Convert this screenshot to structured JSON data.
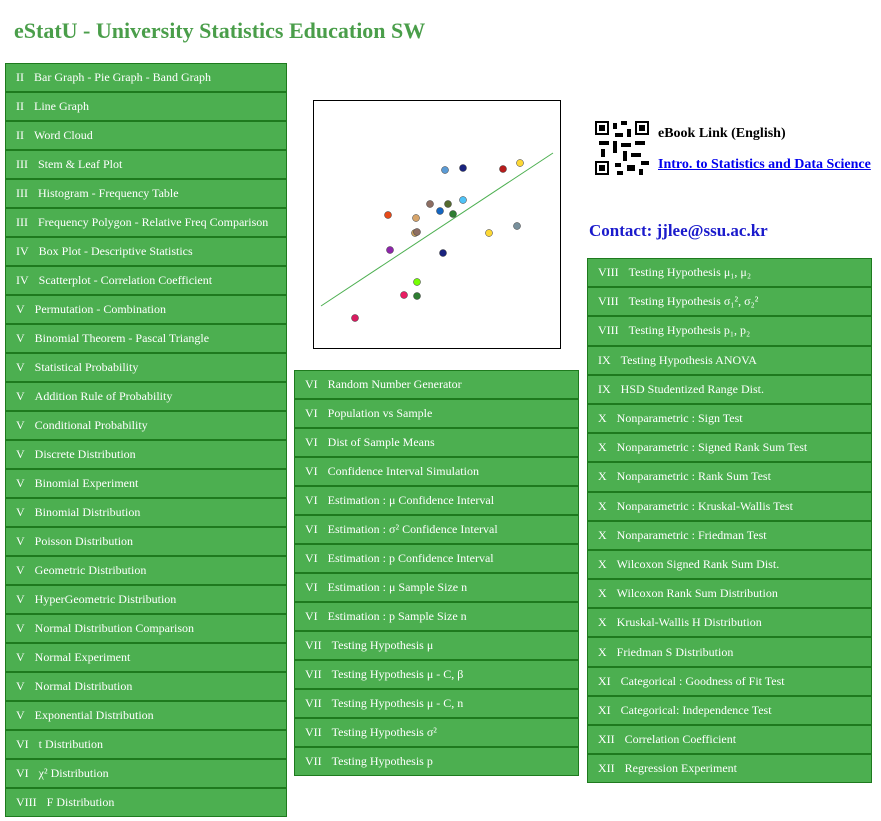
{
  "header": {
    "title": "eStatU - University Statistics Education SW"
  },
  "ebook": {
    "label": "eBook Link (English)",
    "link": "Intro. to Statistics and Data Science"
  },
  "contact": "Contact: jjlee@ssu.ac.kr",
  "left": {
    "items": [
      {
        "chapter": "II",
        "label": "Bar Graph - Pie Graph - Band Graph"
      },
      {
        "chapter": "II",
        "label": "Line Graph"
      },
      {
        "chapter": "II",
        "label": "Word Cloud"
      },
      {
        "chapter": "III",
        "label": "Stem & Leaf Plot"
      },
      {
        "chapter": "III",
        "label": "Histogram - Frequency Table"
      },
      {
        "chapter": "III",
        "label": "Frequency Polygon - Relative Freq Comparison"
      },
      {
        "chapter": "IV",
        "label": "Box Plot - Descriptive Statistics"
      },
      {
        "chapter": "IV",
        "label": "Scatterplot - Correlation Coefficient"
      },
      {
        "chapter": "V",
        "label": "Permutation - Combination"
      },
      {
        "chapter": "V",
        "label": "Binomial Theorem - Pascal Triangle"
      },
      {
        "chapter": "V",
        "label": "Statistical Probability"
      },
      {
        "chapter": "V",
        "label": "Addition Rule of Probability"
      },
      {
        "chapter": "V",
        "label": "Conditional Probability"
      },
      {
        "chapter": "V",
        "label": "Discrete Distribution"
      },
      {
        "chapter": "V",
        "label": "Binomial Experiment"
      },
      {
        "chapter": "V",
        "label": "Binomial Distribution"
      },
      {
        "chapter": "V",
        "label": "Poisson Distribution"
      },
      {
        "chapter": "V",
        "label": "Geometric Distribution"
      },
      {
        "chapter": "V",
        "label": "HyperGeometric Distribution"
      },
      {
        "chapter": "V",
        "label": "Normal Distribution Comparison"
      },
      {
        "chapter": "V",
        "label": "Normal Experiment"
      },
      {
        "chapter": "V",
        "label": "Normal Distribution"
      },
      {
        "chapter": "V",
        "label": "Exponential Distribution"
      },
      {
        "chapter": "VI",
        "label": "t Distribution"
      },
      {
        "chapter": "VI",
        "label": "χ² Distribution"
      },
      {
        "chapter": "VIII",
        "label": "F Distribution"
      }
    ]
  },
  "middle": {
    "items": [
      {
        "chapter": "VI",
        "label": "Random Number Generator"
      },
      {
        "chapter": "VI",
        "label": "Population vs Sample"
      },
      {
        "chapter": "VI",
        "label": "Dist of Sample Means"
      },
      {
        "chapter": "VI",
        "label": "Confidence Interval Simulation"
      },
      {
        "chapter": "VI",
        "label": "Estimation : μ Confidence Interval"
      },
      {
        "chapter": "VI",
        "label": "Estimation : σ² Confidence Interval"
      },
      {
        "chapter": "VI",
        "label": "Estimation : p Confidence Interval"
      },
      {
        "chapter": "VI",
        "label": "Estimation : μ Sample Size n"
      },
      {
        "chapter": "VI",
        "label": "Estimation : p Sample Size n"
      },
      {
        "chapter": "VII",
        "label": "Testing Hypothesis μ"
      },
      {
        "chapter": "VII",
        "label": "Testing Hypothesis μ - C, β"
      },
      {
        "chapter": "VII",
        "label": "Testing Hypothesis μ - C, n"
      },
      {
        "chapter": "VII",
        "label": "Testing Hypothesis σ²"
      },
      {
        "chapter": "VII",
        "label": "Testing Hypothesis p"
      }
    ]
  },
  "right": {
    "items": [
      {
        "chapter": "VIII",
        "label": "Testing Hypothesis μ₁, μ₂"
      },
      {
        "chapter": "VIII",
        "label": "Testing Hypothesis σ₁², σ₂²"
      },
      {
        "chapter": "VIII",
        "label": "Testing Hypothesis p₁, p₂"
      },
      {
        "chapter": "IX",
        "label": "Testing Hypothesis ANOVA"
      },
      {
        "chapter": "IX",
        "label": "HSD Studentized Range Dist."
      },
      {
        "chapter": "X",
        "label": "Nonparametric : Sign Test"
      },
      {
        "chapter": "X",
        "label": "Nonparametric : Signed Rank Sum Test"
      },
      {
        "chapter": "X",
        "label": "Nonparametric : Rank Sum Test"
      },
      {
        "chapter": "X",
        "label": "Nonparametric : Kruskal-Wallis Test"
      },
      {
        "chapter": "X",
        "label": "Nonparametric : Friedman Test"
      },
      {
        "chapter": "X",
        "label": "Wilcoxon Signed Rank Sum Dist."
      },
      {
        "chapter": "X",
        "label": "Wilcoxon Rank Sum Distribution"
      },
      {
        "chapter": "X",
        "label": "Kruskal-Wallis H Distribution"
      },
      {
        "chapter": "X",
        "label": "Friedman S Distribution"
      },
      {
        "chapter": "XI",
        "label": "Categorical : Goodness of Fit Test"
      },
      {
        "chapter": "XI",
        "label": "Categorical: Independence Test"
      },
      {
        "chapter": "XII",
        "label": "Correlation Coefficient"
      },
      {
        "chapter": "XII",
        "label": "Regression Experiment"
      }
    ]
  }
}
